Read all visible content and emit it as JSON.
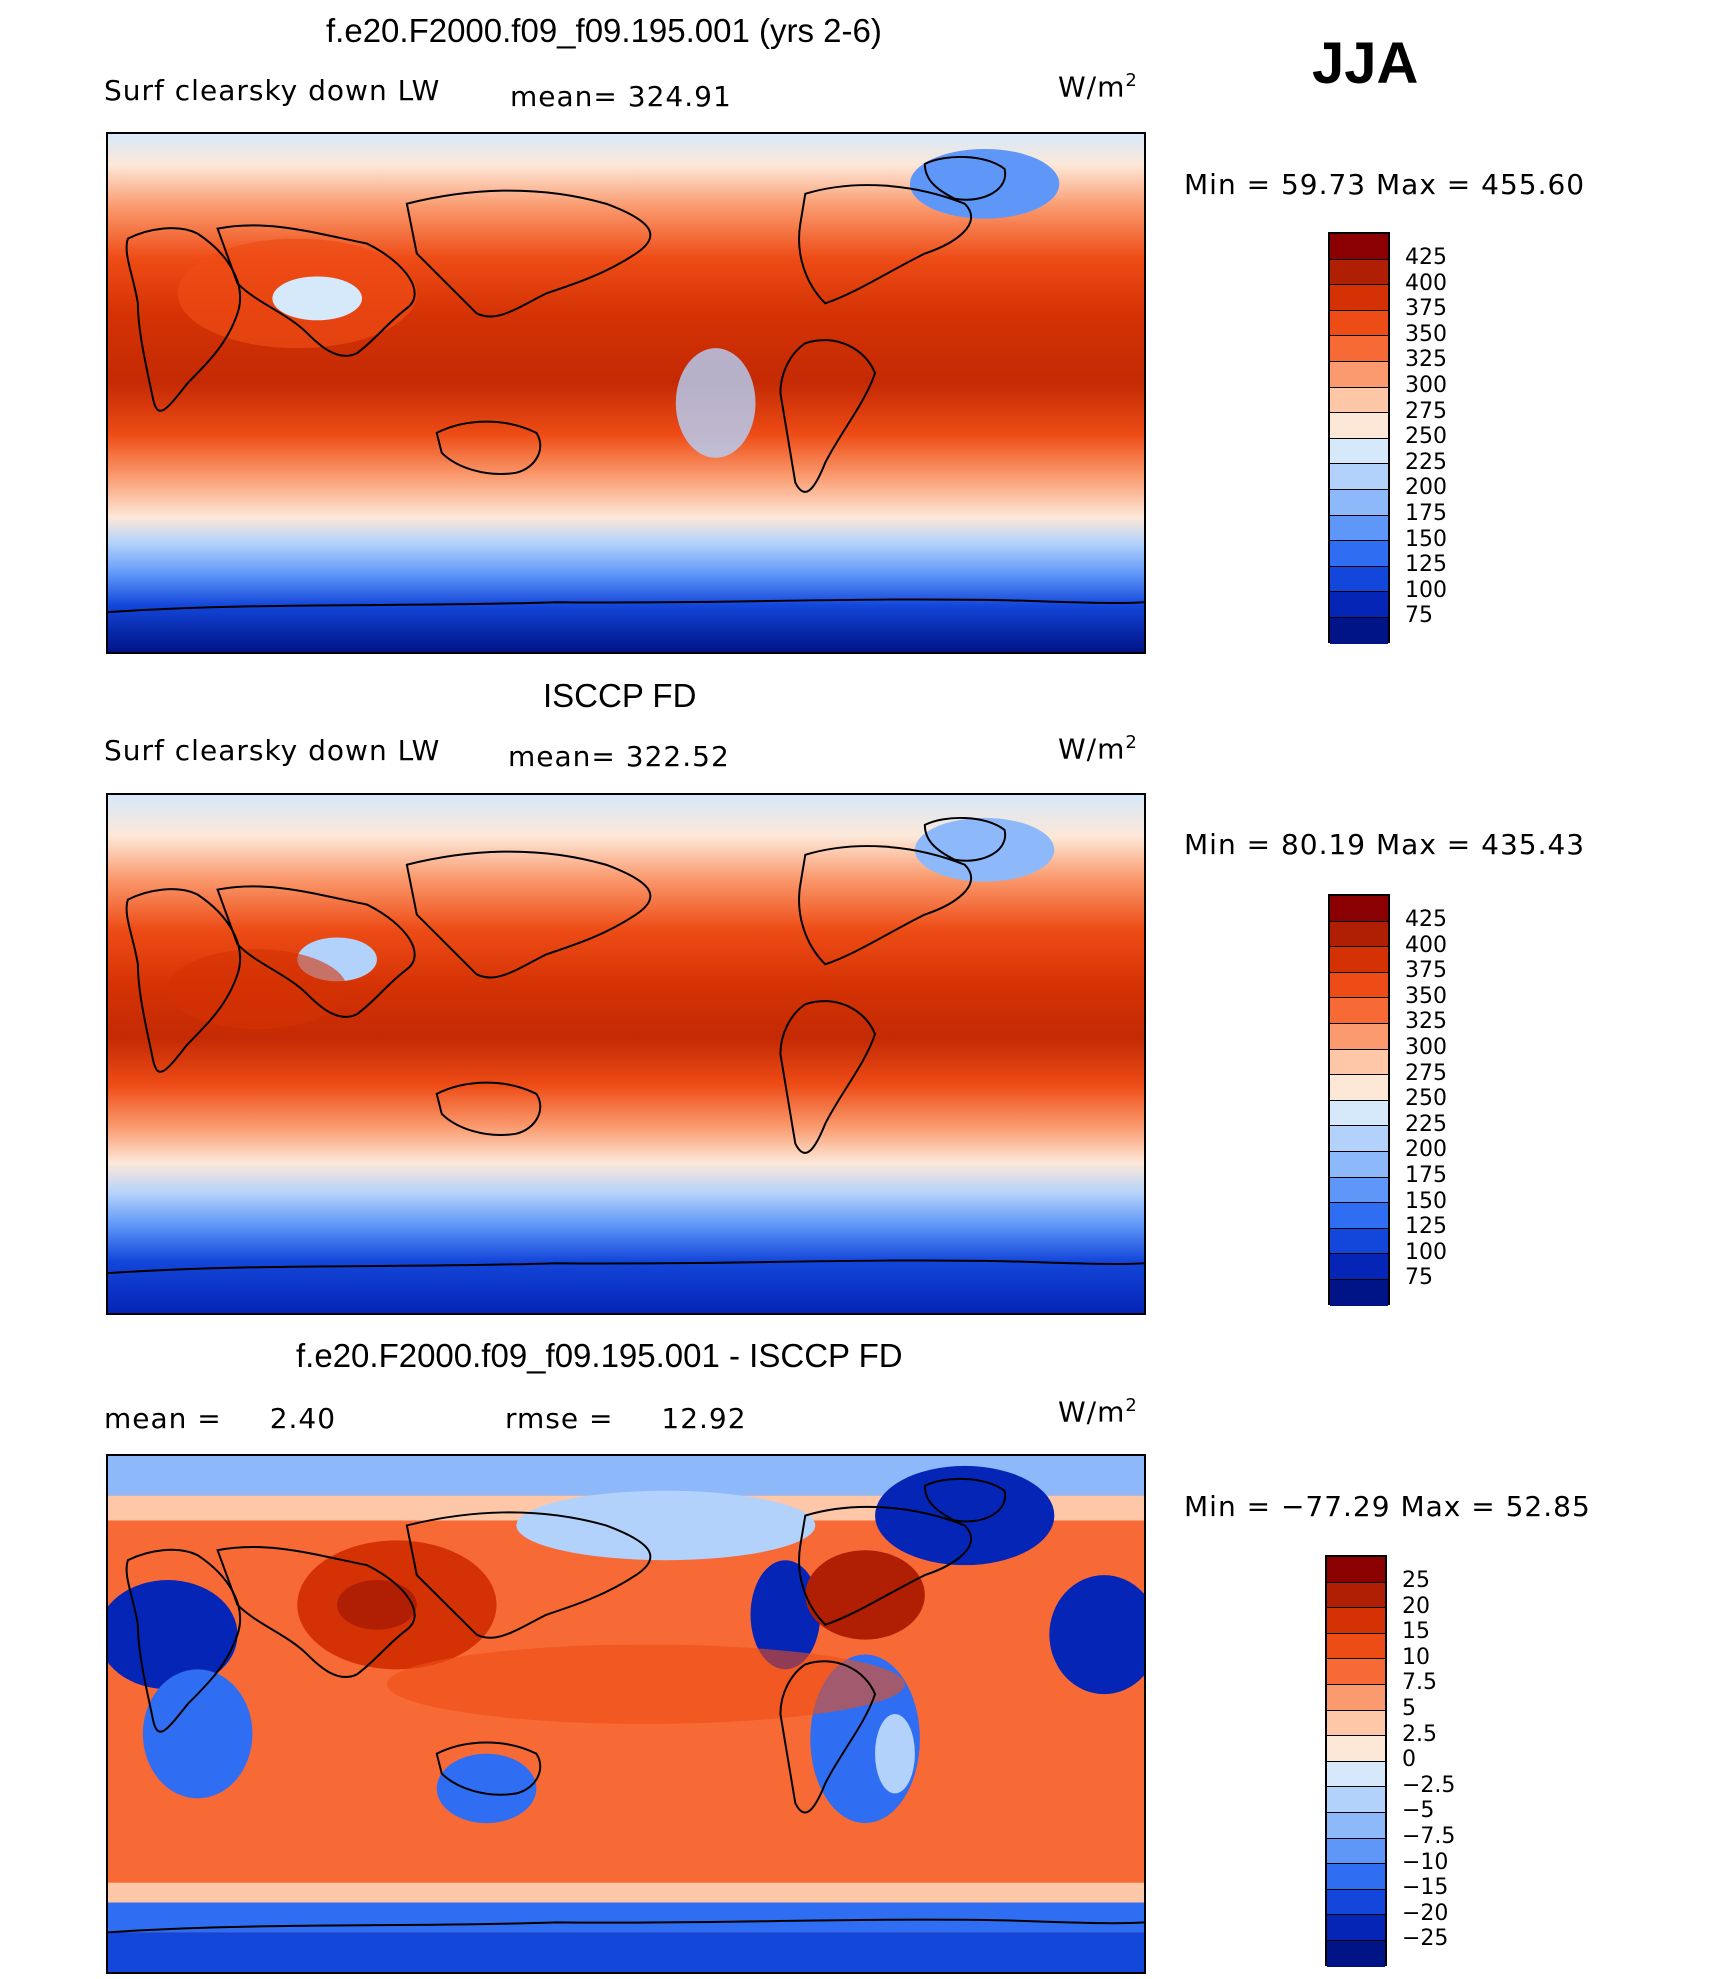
{
  "season": "JJA",
  "units_base": "W/m",
  "units_exp": "2",
  "panels": [
    {
      "title": "f.e20.F2000.f09_f09.195.001 (yrs 2-6)",
      "variable": "Surf clearsky down LW",
      "mean_label": "mean=",
      "mean": "324.91",
      "minmax": "Min =   59.73 Max =  455.60",
      "colorbar_ticks": [
        "425",
        "400",
        "375",
        "350",
        "325",
        "300",
        "275",
        "250",
        "225",
        "200",
        "175",
        "150",
        "125",
        "100",
        "75"
      ],
      "colorbar_colors": [
        "#8b0000",
        "#b01e04",
        "#d43204",
        "#ee4c16",
        "#f76a36",
        "#fa9a6e",
        "#fdc7a8",
        "#fde8d8",
        "#d6e9fa",
        "#b3d2fb",
        "#8db8fa",
        "#5f97f8",
        "#2f6ef2",
        "#1346da",
        "#0525b6",
        "#001387"
      ]
    },
    {
      "title": "ISCCP FD",
      "variable": "Surf clearsky down LW",
      "mean_label": "mean=",
      "mean": "322.52",
      "minmax": "Min =   80.19 Max =  435.43",
      "colorbar_ticks": [
        "425",
        "400",
        "375",
        "350",
        "325",
        "300",
        "275",
        "250",
        "225",
        "200",
        "175",
        "150",
        "125",
        "100",
        "75"
      ],
      "colorbar_colors": [
        "#8b0000",
        "#b01e04",
        "#d43204",
        "#ee4c16",
        "#f76a36",
        "#fa9a6e",
        "#fdc7a8",
        "#fde8d8",
        "#d6e9fa",
        "#b3d2fb",
        "#8db8fa",
        "#5f97f8",
        "#2f6ef2",
        "#1346da",
        "#0525b6",
        "#001387"
      ]
    },
    {
      "title": "f.e20.F2000.f09_f09.195.001 - ISCCP FD",
      "mean_label": "mean =",
      "mean": "2.40",
      "rmse_label": "rmse =",
      "rmse": "12.92",
      "minmax": "Min = −77.29 Max =   52.85",
      "colorbar_ticks": [
        "25",
        "20",
        "15",
        "10",
        "7.5",
        "5",
        "2.5",
        "0",
        "−2.5",
        "−5",
        "−7.5",
        "−10",
        "−15",
        "−20",
        "−25"
      ],
      "colorbar_colors": [
        "#8b0000",
        "#b01e04",
        "#d43204",
        "#ee4c16",
        "#f76a36",
        "#fa9a6e",
        "#fdc7a8",
        "#fde8d8",
        "#d6e9fa",
        "#b3d2fb",
        "#8db8fa",
        "#5f97f8",
        "#2f6ef2",
        "#1346da",
        "#0525b6",
        "#001387"
      ]
    }
  ]
}
